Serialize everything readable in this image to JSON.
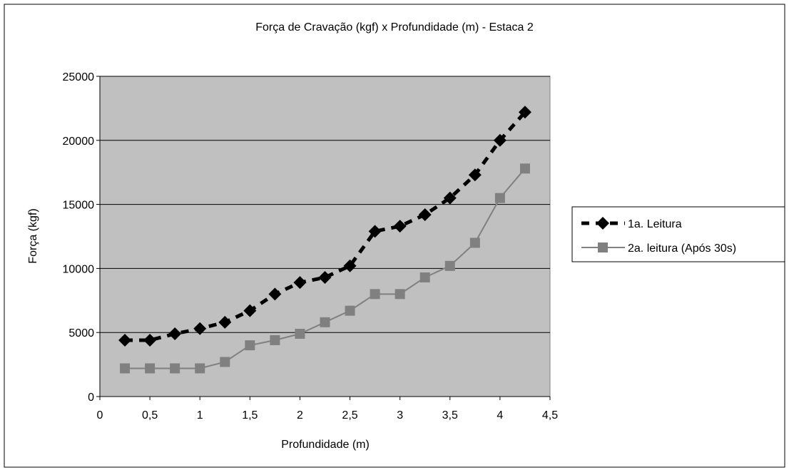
{
  "chart_data": {
    "type": "line",
    "title": "Força de Cravação (kgf) x Profundidade (m) - Estaca 2",
    "xlabel": "Profundidade (m)",
    "ylabel": "Força (kgf)",
    "xlim": [
      0,
      4.5
    ],
    "ylim": [
      0,
      25000
    ],
    "xticks": [
      0,
      0.5,
      1,
      1.5,
      2,
      2.5,
      3,
      3.5,
      4,
      4.5
    ],
    "xtick_labels": [
      "0",
      "0,5",
      "1",
      "1,5",
      "2",
      "2,5",
      "3",
      "3,5",
      "4",
      "4,5"
    ],
    "yticks": [
      0,
      5000,
      10000,
      15000,
      20000,
      25000
    ],
    "ytick_labels": [
      "0",
      "5000",
      "10000",
      "15000",
      "20000",
      "25000"
    ],
    "grid": "horizontal",
    "legend_position": "right",
    "plot_background": "#c0c0c0",
    "series": [
      {
        "name": "1a. Leitura",
        "color": "#000000",
        "line_style": "dashed",
        "marker": "diamond",
        "x": [
          0.25,
          0.5,
          0.75,
          1,
          1.25,
          1.5,
          1.75,
          2,
          2.25,
          2.5,
          2.75,
          3,
          3.25,
          3.5,
          3.75,
          4,
          4.25
        ],
        "y": [
          4400,
          4400,
          4900,
          5300,
          5800,
          6700,
          8000,
          8900,
          9300,
          10200,
          12900,
          13300,
          14200,
          15500,
          17300,
          20000,
          22200
        ]
      },
      {
        "name": "2a. leitura (Após 30s)",
        "color": "#808080",
        "line_style": "solid",
        "marker": "square",
        "x": [
          0.25,
          0.5,
          0.75,
          1,
          1.25,
          1.5,
          1.75,
          2,
          2.25,
          2.5,
          2.75,
          3,
          3.25,
          3.5,
          3.75,
          4,
          4.25
        ],
        "y": [
          2200,
          2200,
          2200,
          2200,
          2700,
          4000,
          4400,
          4900,
          5800,
          6700,
          8000,
          8000,
          9300,
          10200,
          12000,
          15500,
          17800
        ]
      }
    ]
  }
}
